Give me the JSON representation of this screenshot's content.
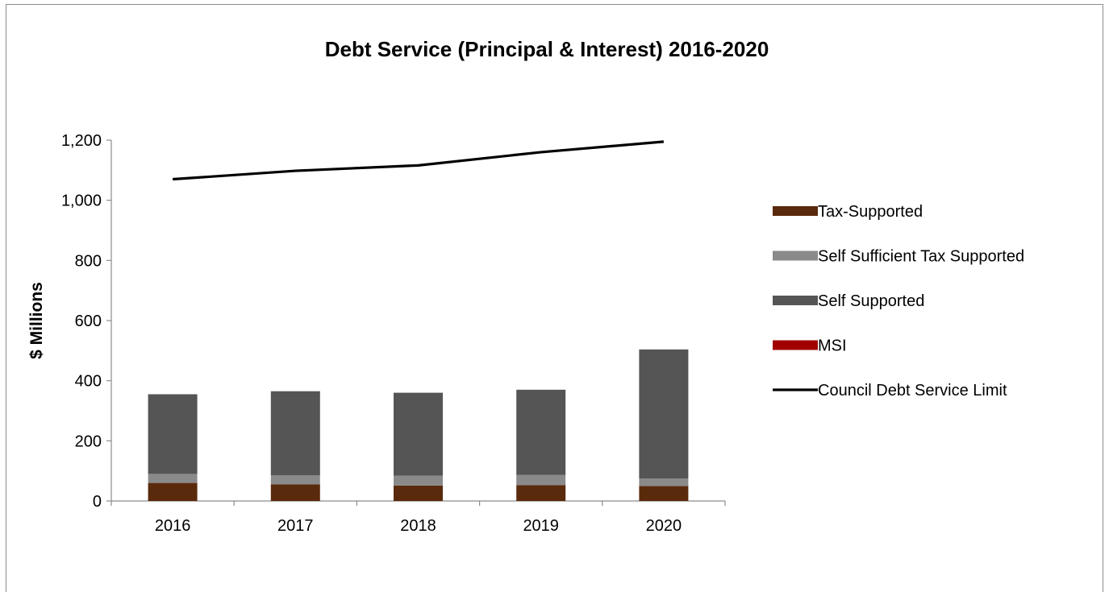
{
  "chart_data": {
    "type": "bar",
    "stacked": true,
    "title": "Debt Service (Principal & Interest) 2016-2020",
    "xlabel": "",
    "ylabel": "$ Millions",
    "ylim": [
      0,
      1200
    ],
    "yticks": [
      0,
      200,
      400,
      600,
      800,
      1000,
      1200
    ],
    "ytick_labels": [
      "0",
      "200",
      "400",
      "600",
      "800",
      "1,000",
      "1,200"
    ],
    "categories": [
      "2016",
      "2017",
      "2018",
      "2019",
      "2020"
    ],
    "grid": false,
    "legend_position": "right",
    "series": [
      {
        "name": "Tax-Supported",
        "kind": "bar",
        "color": "#5a2a0c",
        "values": [
          60,
          55,
          51,
          53,
          50
        ]
      },
      {
        "name": "Self Sufficient Tax Supported",
        "kind": "bar",
        "color": "#8a8a8a",
        "values": [
          30,
          30,
          33,
          34,
          25
        ]
      },
      {
        "name": "Self Supported",
        "kind": "bar",
        "color": "#555555",
        "values": [
          265,
          280,
          276,
          283,
          429
        ]
      },
      {
        "name": "MSI",
        "kind": "bar",
        "color": "#a00000",
        "values": [
          0,
          0,
          0,
          0,
          0
        ]
      },
      {
        "name": "Council Debt Service Limit",
        "kind": "line",
        "color": "#000000",
        "values": [
          1070,
          1098,
          1116,
          1160,
          1195
        ]
      }
    ]
  }
}
